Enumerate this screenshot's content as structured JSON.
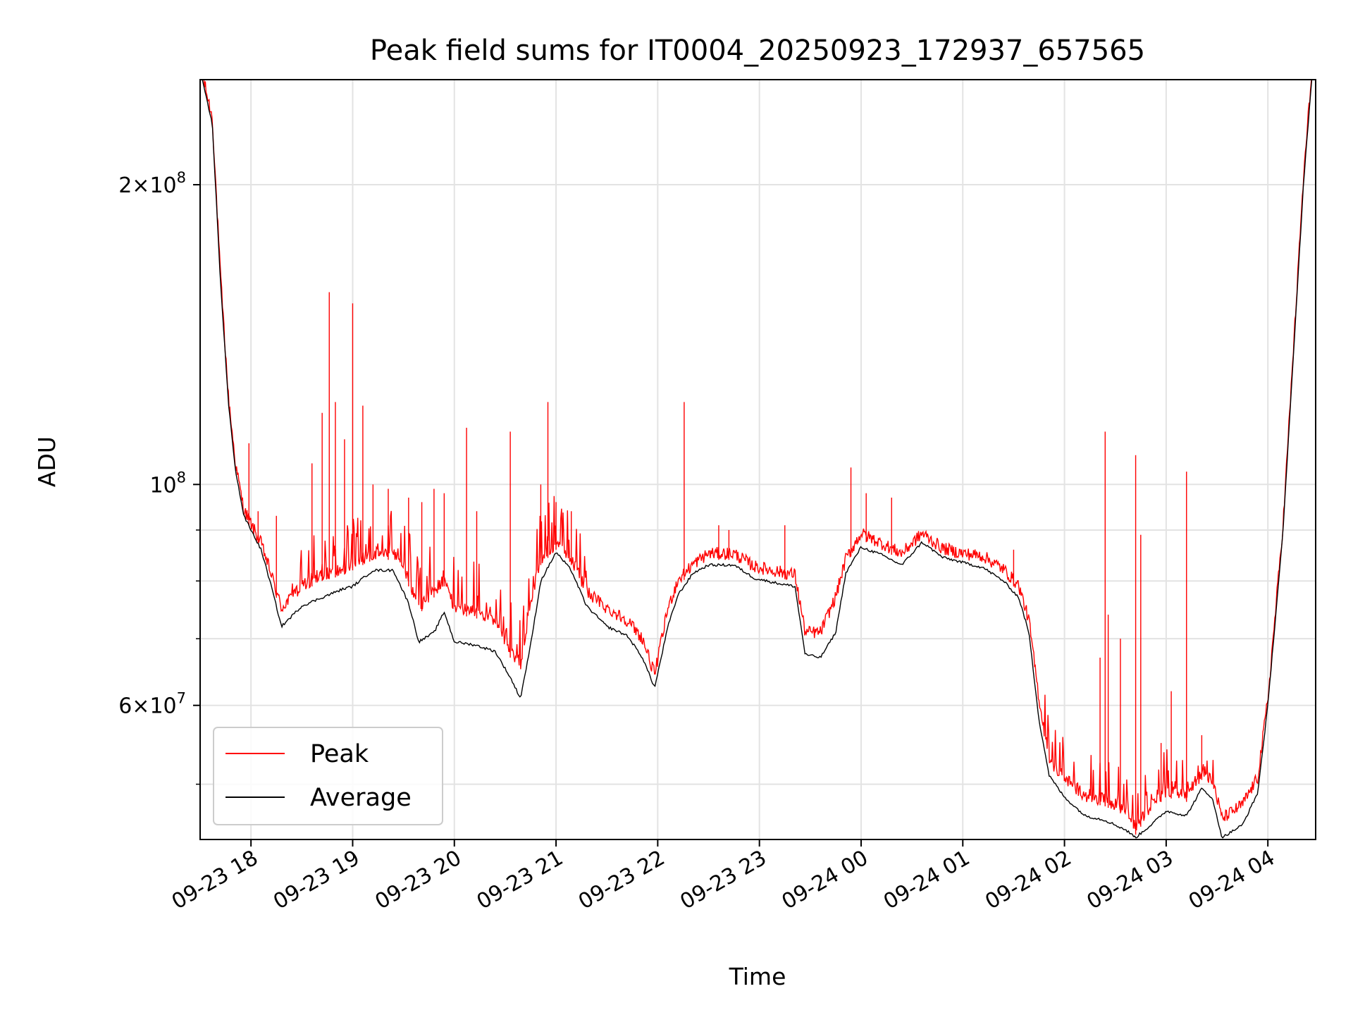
{
  "chart_data": {
    "type": "line",
    "title": "Peak field sums for IT0004_20250923_172937_657565",
    "xlabel": "Time",
    "ylabel": "ADU",
    "yscale": "log",
    "xlim_hours": [
      17.5,
      28.47
    ],
    "ylim": [
      44000000,
      255000000
    ],
    "grid": true,
    "legend_loc": "lower left",
    "x_ticks": [
      {
        "hour": 18,
        "label": "09-23 18"
      },
      {
        "hour": 19,
        "label": "09-23 19"
      },
      {
        "hour": 20,
        "label": "09-23 20"
      },
      {
        "hour": 21,
        "label": "09-23 21"
      },
      {
        "hour": 22,
        "label": "09-23 22"
      },
      {
        "hour": 23,
        "label": "09-23 23"
      },
      {
        "hour": 24,
        "label": "09-24 00"
      },
      {
        "hour": 25,
        "label": "09-24 01"
      },
      {
        "hour": 26,
        "label": "09-24 02"
      },
      {
        "hour": 27,
        "label": "09-24 03"
      },
      {
        "hour": 28,
        "label": "09-24 04"
      }
    ],
    "y_major_ticks": [
      {
        "value": 60000000,
        "mantissa": "6",
        "base": "10",
        "exp": "7"
      },
      {
        "value": 100000000,
        "mantissa": "",
        "base": "10",
        "exp": "8"
      },
      {
        "value": 200000000,
        "mantissa": "2",
        "base": "10",
        "exp": "8"
      }
    ],
    "y_minor_ticks": [
      50000000,
      70000000,
      80000000,
      90000000,
      300000000,
      400000000
    ],
    "series": [
      {
        "name": "Peak",
        "color": "#ff0000",
        "baseline_points": [
          [
            17.5,
            260000000
          ],
          [
            17.62,
            230000000
          ],
          [
            17.7,
            160000000
          ],
          [
            17.78,
            120000000
          ],
          [
            17.85,
            103000000
          ],
          [
            17.93,
            93000000
          ],
          [
            18.0,
            90000000
          ],
          [
            18.1,
            86000000
          ],
          [
            18.2,
            80000000
          ],
          [
            18.3,
            74000000
          ],
          [
            18.5,
            78000000
          ],
          [
            18.7,
            80000000
          ],
          [
            18.9,
            81000000
          ],
          [
            19.0,
            82000000
          ],
          [
            19.2,
            84000000
          ],
          [
            19.45,
            84000000
          ],
          [
            19.55,
            79000000
          ],
          [
            19.65,
            74000000
          ],
          [
            19.8,
            77000000
          ],
          [
            19.9,
            79000000
          ],
          [
            20.0,
            74000000
          ],
          [
            20.2,
            73500000
          ],
          [
            20.4,
            72000000
          ],
          [
            20.55,
            67000000
          ],
          [
            20.65,
            65000000
          ],
          [
            20.75,
            75000000
          ],
          [
            20.85,
            83000000
          ],
          [
            21.0,
            86000000
          ],
          [
            21.15,
            83000000
          ],
          [
            21.3,
            77000000
          ],
          [
            21.5,
            74000000
          ],
          [
            21.7,
            72000000
          ],
          [
            21.85,
            69000000
          ],
          [
            21.97,
            63500000
          ],
          [
            22.1,
            74000000
          ],
          [
            22.2,
            79000000
          ],
          [
            22.35,
            82000000
          ],
          [
            22.5,
            84000000
          ],
          [
            22.75,
            84000000
          ],
          [
            22.95,
            81500000
          ],
          [
            23.2,
            80500000
          ],
          [
            23.35,
            80000000
          ],
          [
            23.45,
            70000000
          ],
          [
            23.6,
            70000000
          ],
          [
            23.75,
            76000000
          ],
          [
            23.85,
            83000000
          ],
          [
            24.0,
            88000000
          ],
          [
            24.2,
            86000000
          ],
          [
            24.4,
            84000000
          ],
          [
            24.6,
            88000000
          ],
          [
            24.8,
            85000000
          ],
          [
            25.0,
            84000000
          ],
          [
            25.2,
            83500000
          ],
          [
            25.4,
            81000000
          ],
          [
            25.55,
            78000000
          ],
          [
            25.65,
            72000000
          ],
          [
            25.75,
            60000000
          ],
          [
            25.85,
            52000000
          ],
          [
            26.0,
            50000000
          ],
          [
            26.2,
            48000000
          ],
          [
            26.4,
            47500000
          ],
          [
            26.6,
            46500000
          ],
          [
            26.7,
            44500000
          ],
          [
            26.85,
            47000000
          ],
          [
            27.0,
            48500000
          ],
          [
            27.2,
            48000000
          ],
          [
            27.35,
            50500000
          ],
          [
            27.45,
            50000000
          ],
          [
            27.55,
            45500000
          ],
          [
            27.75,
            47000000
          ],
          [
            27.9,
            50000000
          ],
          [
            28.0,
            60000000
          ],
          [
            28.15,
            90000000
          ],
          [
            28.35,
            200000000
          ],
          [
            28.45,
            270000000
          ]
        ],
        "spikes": [
          [
            17.98,
            110000000
          ],
          [
            18.07,
            94000000
          ],
          [
            18.25,
            93000000
          ],
          [
            18.6,
            105000000
          ],
          [
            18.7,
            118000000
          ],
          [
            18.77,
            156000000
          ],
          [
            18.83,
            121000000
          ],
          [
            18.92,
            111000000
          ],
          [
            19.0,
            152000000
          ],
          [
            19.1,
            120000000
          ],
          [
            19.2,
            100000000
          ],
          [
            19.35,
            99000000
          ],
          [
            19.55,
            97000000
          ],
          [
            19.68,
            96000000
          ],
          [
            19.8,
            99000000
          ],
          [
            19.9,
            98000000
          ],
          [
            20.12,
            114000000
          ],
          [
            20.22,
            94000000
          ],
          [
            20.55,
            113000000
          ],
          [
            20.85,
            100000000
          ],
          [
            20.92,
            121000000
          ],
          [
            21.0,
            96000000
          ],
          [
            21.15,
            94000000
          ],
          [
            22.26,
            121000000
          ],
          [
            22.6,
            91000000
          ],
          [
            22.7,
            90000000
          ],
          [
            23.25,
            91000000
          ],
          [
            23.9,
            104000000
          ],
          [
            24.05,
            98000000
          ],
          [
            24.3,
            97000000
          ],
          [
            25.5,
            86000000
          ],
          [
            26.0,
            50000000
          ],
          [
            26.35,
            67000000
          ],
          [
            26.4,
            113000000
          ],
          [
            26.43,
            74000000
          ],
          [
            26.55,
            70000000
          ],
          [
            26.7,
            107000000
          ],
          [
            26.75,
            89000000
          ],
          [
            26.95,
            55000000
          ],
          [
            27.05,
            62000000
          ],
          [
            27.2,
            103000000
          ],
          [
            27.35,
            56000000
          ]
        ]
      },
      {
        "name": "Average",
        "color": "#000000",
        "points": [
          [
            17.5,
            260000000
          ],
          [
            17.62,
            230000000
          ],
          [
            17.7,
            160000000
          ],
          [
            17.78,
            120000000
          ],
          [
            17.85,
            103000000
          ],
          [
            17.93,
            93000000
          ],
          [
            18.0,
            90000000
          ],
          [
            18.1,
            86000000
          ],
          [
            18.2,
            79000000
          ],
          [
            18.3,
            72000000
          ],
          [
            18.5,
            75500000
          ],
          [
            18.7,
            77000000
          ],
          [
            18.9,
            78500000
          ],
          [
            19.0,
            79000000
          ],
          [
            19.2,
            82000000
          ],
          [
            19.4,
            82000000
          ],
          [
            19.55,
            76000000
          ],
          [
            19.65,
            69500000
          ],
          [
            19.8,
            71000000
          ],
          [
            19.9,
            74500000
          ],
          [
            20.0,
            69500000
          ],
          [
            20.2,
            69000000
          ],
          [
            20.4,
            68000000
          ],
          [
            20.55,
            64000000
          ],
          [
            20.65,
            61000000
          ],
          [
            20.75,
            69000000
          ],
          [
            20.85,
            80000000
          ],
          [
            21.0,
            85500000
          ],
          [
            21.15,
            82000000
          ],
          [
            21.3,
            75500000
          ],
          [
            21.5,
            72000000
          ],
          [
            21.7,
            70500000
          ],
          [
            21.85,
            67000000
          ],
          [
            21.97,
            62500000
          ],
          [
            22.1,
            72000000
          ],
          [
            22.2,
            77500000
          ],
          [
            22.35,
            81500000
          ],
          [
            22.5,
            83000000
          ],
          [
            22.75,
            83000000
          ],
          [
            22.95,
            80500000
          ],
          [
            23.2,
            79500000
          ],
          [
            23.35,
            79000000
          ],
          [
            23.45,
            67500000
          ],
          [
            23.6,
            67000000
          ],
          [
            23.75,
            71000000
          ],
          [
            23.85,
            81500000
          ],
          [
            24.0,
            86500000
          ],
          [
            24.2,
            85000000
          ],
          [
            24.4,
            83000000
          ],
          [
            24.6,
            87500000
          ],
          [
            24.8,
            84500000
          ],
          [
            25.0,
            83500000
          ],
          [
            25.2,
            82500000
          ],
          [
            25.4,
            80000000
          ],
          [
            25.55,
            77000000
          ],
          [
            25.65,
            71000000
          ],
          [
            25.75,
            58000000
          ],
          [
            25.85,
            51000000
          ],
          [
            26.0,
            48500000
          ],
          [
            26.2,
            46500000
          ],
          [
            26.4,
            46000000
          ],
          [
            26.6,
            45000000
          ],
          [
            26.7,
            44200000
          ],
          [
            26.85,
            45500000
          ],
          [
            27.0,
            47000000
          ],
          [
            27.2,
            46500000
          ],
          [
            27.35,
            49500000
          ],
          [
            27.45,
            48500000
          ],
          [
            27.55,
            44200000
          ],
          [
            27.75,
            45500000
          ],
          [
            27.9,
            49000000
          ],
          [
            28.0,
            60000000
          ],
          [
            28.15,
            90000000
          ],
          [
            28.35,
            200000000
          ],
          [
            28.45,
            270000000
          ]
        ]
      }
    ]
  }
}
